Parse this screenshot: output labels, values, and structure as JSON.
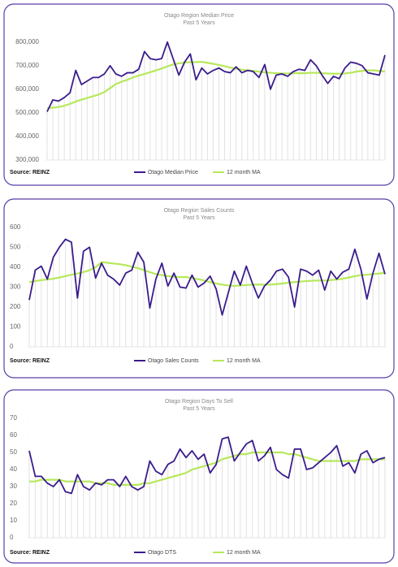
{
  "chart_data": [
    {
      "type": "line",
      "title": "Otago Region Median Price",
      "subtitle": "Past 5 Years",
      "source": "Source: REINZ",
      "ylim": [
        300000,
        820000
      ],
      "yticks": [
        {
          "value": 300000,
          "label": "300,000"
        },
        {
          "value": 400000,
          "label": "400,000"
        },
        {
          "value": 500000,
          "label": "500,000"
        },
        {
          "value": 600000,
          "label": "600,000"
        },
        {
          "value": 700000,
          "label": "700,000"
        },
        {
          "value": 800000,
          "label": "800,000"
        }
      ],
      "series": [
        {
          "name": "Otago Median Price",
          "color": "#3b1c8c",
          "values": [
            505000,
            555000,
            550000,
            565000,
            585000,
            680000,
            620000,
            635000,
            650000,
            650000,
            665000,
            700000,
            665000,
            655000,
            670000,
            670000,
            685000,
            760000,
            730000,
            725000,
            730000,
            800000,
            730000,
            660000,
            715000,
            750000,
            640000,
            690000,
            665000,
            680000,
            690000,
            675000,
            670000,
            695000,
            670000,
            680000,
            675000,
            650000,
            705000,
            600000,
            660000,
            665000,
            655000,
            675000,
            685000,
            680000,
            725000,
            700000,
            660000,
            625000,
            655000,
            645000,
            690000,
            715000,
            710000,
            700000,
            670000,
            665000,
            660000,
            745000
          ]
        },
        {
          "name": "12 month MA",
          "color": "#b6e85a",
          "values": [
            520000,
            522000,
            525000,
            530000,
            538000,
            548000,
            556000,
            563000,
            570000,
            578000,
            588000,
            605000,
            622000,
            632000,
            640000,
            650000,
            658000,
            665000,
            672000,
            680000,
            688000,
            697000,
            705000,
            710000,
            713000,
            715000,
            715000,
            716000,
            712000,
            708000,
            703000,
            698000,
            692000,
            687000,
            683000,
            680000,
            678000,
            675000,
            672000,
            670000,
            668000,
            667000,
            667000,
            668000,
            668000,
            668000,
            670000,
            670000,
            668000,
            667000,
            666000,
            666000,
            667000,
            670000,
            675000,
            678000,
            680000,
            680000,
            678000,
            675000
          ]
        }
      ]
    },
    {
      "type": "line",
      "title": "Otago Region Sales Counts",
      "subtitle": "Past 5 Years",
      "source": "Source: REINZ",
      "ylim": [
        0,
        640
      ],
      "yticks": [
        0,
        100,
        200,
        300,
        400,
        500,
        600
      ],
      "series": [
        {
          "name": "Otago Sales Counts",
          "color": "#3b1c8c",
          "values": [
            235,
            385,
            405,
            340,
            450,
            500,
            540,
            525,
            245,
            480,
            500,
            345,
            420,
            360,
            340,
            310,
            370,
            385,
            475,
            425,
            195,
            340,
            420,
            305,
            370,
            300,
            295,
            360,
            300,
            320,
            355,
            290,
            160,
            270,
            380,
            310,
            405,
            320,
            245,
            305,
            335,
            380,
            390,
            350,
            200,
            390,
            380,
            360,
            385,
            285,
            380,
            340,
            375,
            390,
            490,
            390,
            240,
            370,
            470,
            365
          ]
        },
        {
          "name": "12 month MA",
          "color": "#b6e85a",
          "values": [
            325,
            330,
            335,
            338,
            342,
            348,
            355,
            362,
            368,
            375,
            385,
            400,
            425,
            422,
            418,
            415,
            410,
            403,
            395,
            385,
            375,
            365,
            360,
            355,
            352,
            350,
            350,
            345,
            340,
            333,
            325,
            318,
            312,
            308,
            306,
            308,
            310,
            312,
            313,
            312,
            312,
            315,
            318,
            322,
            325,
            328,
            330,
            332,
            333,
            333,
            335,
            338,
            342,
            348,
            355,
            360,
            362,
            365,
            368,
            372
          ]
        }
      ]
    },
    {
      "type": "line",
      "title": "Otago Region Days To Sell",
      "subtitle": "Past 5 Years",
      "source": "Source: REINZ",
      "ylim": [
        0,
        75
      ],
      "yticks": [
        0,
        10,
        20,
        30,
        40,
        50,
        60,
        70
      ],
      "series": [
        {
          "name": "Otago DTS",
          "color": "#3b1c8c",
          "values": [
            51,
            36,
            36,
            32,
            30,
            34,
            27,
            26,
            37,
            30,
            28,
            32,
            31,
            34,
            34,
            30,
            36,
            30,
            28,
            30,
            45,
            39,
            37,
            43,
            45,
            52,
            47,
            51,
            46,
            49,
            38,
            43,
            58,
            59,
            45,
            50,
            55,
            57,
            45,
            48,
            53,
            40,
            37,
            35,
            52,
            52,
            40,
            41,
            44,
            47,
            50,
            54,
            42,
            44,
            38,
            49,
            51,
            44,
            46,
            47
          ]
        },
        {
          "name": "12 month MA",
          "color": "#b6e85a",
          "values": [
            33,
            33,
            34,
            34,
            34,
            34,
            33,
            33,
            33,
            33,
            33,
            32,
            32,
            32,
            31,
            31,
            31,
            31,
            31,
            32,
            32,
            33,
            34,
            35,
            36,
            37,
            38,
            40,
            41,
            42,
            43,
            44,
            46,
            47,
            48,
            49,
            49,
            50,
            50,
            50,
            50,
            50,
            50,
            49,
            49,
            48,
            47,
            46,
            45,
            45,
            45,
            45,
            45,
            45,
            45,
            46,
            46,
            46,
            46,
            46
          ]
        }
      ]
    }
  ]
}
